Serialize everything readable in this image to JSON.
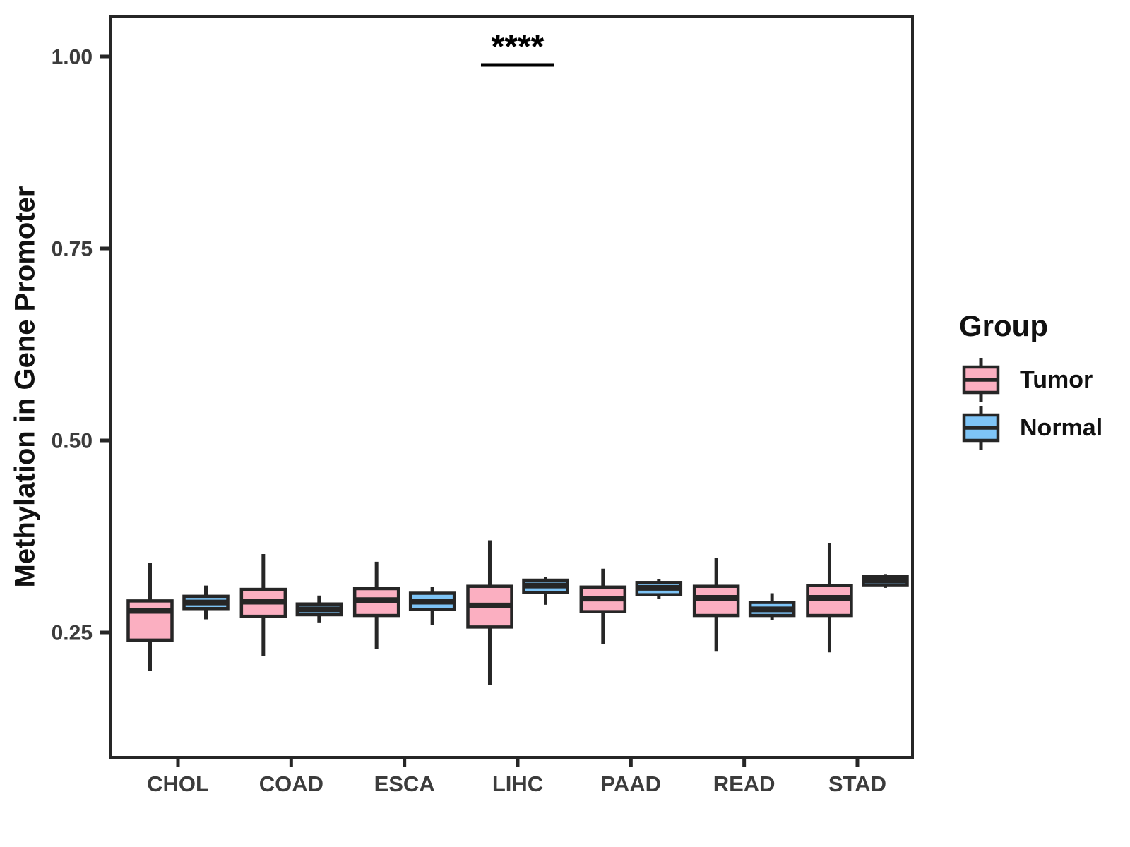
{
  "chart_data": {
    "type": "boxplot",
    "title": "",
    "xlabel": "",
    "ylabel": "Methylation in Gene Promoter",
    "categories": [
      "CHOL",
      "COAD",
      "ESCA",
      "LIHC",
      "PAAD",
      "READ",
      "STAD"
    ],
    "ylim": [
      0.087,
      1.053
    ],
    "yticks": [
      {
        "value": 0.25,
        "label": "0.25"
      },
      {
        "value": 0.5,
        "label": "0.50"
      },
      {
        "value": 0.75,
        "label": "0.75"
      },
      {
        "value": 1.0,
        "label": "1.00"
      }
    ],
    "grid": false,
    "legend_position": "right",
    "groups": [
      {
        "name": "Tumor",
        "color": "#FBAFC1"
      },
      {
        "name": "Normal",
        "color": "#7EC4F6"
      }
    ],
    "series": [
      {
        "name": "Tumor",
        "stats": [
          {
            "category": "CHOL",
            "low": 0.2,
            "q1": 0.24,
            "median": 0.278,
            "q3": 0.291,
            "high": 0.341
          },
          {
            "category": "COAD",
            "low": 0.219,
            "q1": 0.271,
            "median": 0.29,
            "q3": 0.306,
            "high": 0.352
          },
          {
            "category": "ESCA",
            "low": 0.228,
            "q1": 0.272,
            "median": 0.292,
            "q3": 0.307,
            "high": 0.342
          },
          {
            "category": "LIHC",
            "low": 0.182,
            "q1": 0.257,
            "median": 0.285,
            "q3": 0.31,
            "high": 0.37
          },
          {
            "category": "PAAD",
            "low": 0.235,
            "q1": 0.277,
            "median": 0.294,
            "q3": 0.309,
            "high": 0.333
          },
          {
            "category": "READ",
            "low": 0.225,
            "q1": 0.272,
            "median": 0.295,
            "q3": 0.31,
            "high": 0.347
          },
          {
            "category": "STAD",
            "low": 0.224,
            "q1": 0.272,
            "median": 0.295,
            "q3": 0.311,
            "high": 0.366
          }
        ]
      },
      {
        "name": "Normal",
        "stats": [
          {
            "category": "CHOL",
            "low": 0.267,
            "q1": 0.281,
            "median": 0.289,
            "q3": 0.297,
            "high": 0.311
          },
          {
            "category": "COAD",
            "low": 0.263,
            "q1": 0.273,
            "median": 0.28,
            "q3": 0.287,
            "high": 0.298
          },
          {
            "category": "ESCA",
            "low": 0.26,
            "q1": 0.28,
            "median": 0.29,
            "q3": 0.301,
            "high": 0.309
          },
          {
            "category": "LIHC",
            "low": 0.286,
            "q1": 0.302,
            "median": 0.311,
            "q3": 0.318,
            "high": 0.322
          },
          {
            "category": "PAAD",
            "low": 0.294,
            "q1": 0.299,
            "median": 0.308,
            "q3": 0.315,
            "high": 0.319
          },
          {
            "category": "READ",
            "low": 0.266,
            "q1": 0.272,
            "median": 0.28,
            "q3": 0.289,
            "high": 0.301
          },
          {
            "category": "STAD",
            "low": 0.308,
            "q1": 0.312,
            "median": 0.318,
            "q3": 0.323,
            "high": 0.326
          }
        ]
      }
    ],
    "annotation": {
      "label": "****",
      "category": "LIHC",
      "y": 0.989
    }
  },
  "legend": {
    "title": "Group",
    "items": [
      {
        "label": "Tumor",
        "color": "#FBAFC1"
      },
      {
        "label": "Normal",
        "color": "#7EC4F6"
      }
    ]
  },
  "colors": {
    "ink": "#262626",
    "tick_text": "#3C3C3C",
    "background": "#FFFFFF"
  }
}
